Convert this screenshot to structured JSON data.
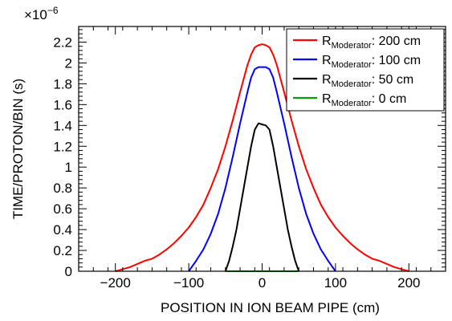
{
  "chart_data": {
    "type": "line",
    "title": "",
    "xlabel": "POSITION IN ION BEAM PIPE (cm)",
    "ylabel": "TIME/PROTON/BIN (s)",
    "y_multiplier_label": "×10",
    "y_multiplier_exponent": "−6",
    "xlim": [
      -250,
      250
    ],
    "ylim": [
      0,
      2.35
    ],
    "x_ticks": [
      -200,
      -100,
      0,
      100,
      200
    ],
    "x_tick_labels": [
      "−200",
      "−100",
      "0",
      "100",
      "200"
    ],
    "y_ticks": [
      0,
      0.2,
      0.4,
      0.6,
      0.8,
      1,
      1.2,
      1.4,
      1.6,
      1.8,
      2,
      2.2
    ],
    "y_tick_labels": [
      "0",
      "0.2",
      "0.4",
      "0.6",
      "0.8",
      "1",
      "1.2",
      "1.4",
      "1.6",
      "1.8",
      "2",
      "2.2"
    ],
    "grid": false,
    "legend_position": "top-right",
    "series": [
      {
        "legend_main": "R",
        "legend_sub": "Moderator",
        "legend_suffix": ": 200 cm",
        "color": "#ff0000",
        "x": [
          -200,
          -190,
          -180,
          -170,
          -160,
          -150,
          -140,
          -130,
          -120,
          -110,
          -100,
          -90,
          -80,
          -70,
          -60,
          -50,
          -40,
          -30,
          -20,
          -15,
          -10,
          -5,
          0,
          5,
          10,
          15,
          20,
          30,
          40,
          50,
          60,
          70,
          80,
          90,
          100,
          110,
          120,
          130,
          140,
          150,
          160,
          170,
          180,
          190,
          200
        ],
        "y": [
          0,
          0.02,
          0.04,
          0.07,
          0.1,
          0.12,
          0.16,
          0.21,
          0.27,
          0.34,
          0.42,
          0.52,
          0.64,
          0.8,
          0.98,
          1.2,
          1.45,
          1.72,
          1.98,
          2.08,
          2.15,
          2.17,
          2.18,
          2.17,
          2.15,
          2.08,
          1.98,
          1.72,
          1.45,
          1.2,
          0.98,
          0.8,
          0.64,
          0.52,
          0.42,
          0.34,
          0.27,
          0.21,
          0.16,
          0.12,
          0.1,
          0.07,
          0.04,
          0.02,
          0
        ]
      },
      {
        "legend_main": "R",
        "legend_sub": "Moderator",
        "legend_suffix": ": 100 cm",
        "color": "#0000ff",
        "x": [
          -100,
          -90,
          -80,
          -70,
          -60,
          -50,
          -40,
          -30,
          -20,
          -15,
          -10,
          -5,
          0,
          5,
          10,
          15,
          20,
          30,
          40,
          50,
          60,
          70,
          80,
          90,
          100
        ],
        "y": [
          0,
          0.1,
          0.21,
          0.36,
          0.55,
          0.8,
          1.1,
          1.42,
          1.72,
          1.86,
          1.94,
          1.96,
          1.96,
          1.96,
          1.94,
          1.86,
          1.72,
          1.42,
          1.1,
          0.8,
          0.55,
          0.36,
          0.21,
          0.1,
          0
        ]
      },
      {
        "legend_main": "R",
        "legend_sub": "Moderator",
        "legend_suffix": ": 50 cm",
        "color": "#000000",
        "x": [
          -50,
          -45,
          -40,
          -35,
          -30,
          -25,
          -20,
          -15,
          -10,
          -5,
          0,
          5,
          10,
          15,
          20,
          25,
          30,
          35,
          40,
          45,
          50
        ],
        "y": [
          0,
          0.1,
          0.24,
          0.4,
          0.6,
          0.8,
          1.0,
          1.2,
          1.36,
          1.42,
          1.41,
          1.4,
          1.36,
          1.2,
          1.0,
          0.8,
          0.6,
          0.4,
          0.24,
          0.1,
          0
        ]
      },
      {
        "legend_main": "R",
        "legend_sub": "Moderator",
        "legend_suffix": ": 0 cm",
        "color": "#00a000",
        "x": [
          -50,
          50
        ],
        "y": [
          0,
          0
        ]
      }
    ]
  }
}
